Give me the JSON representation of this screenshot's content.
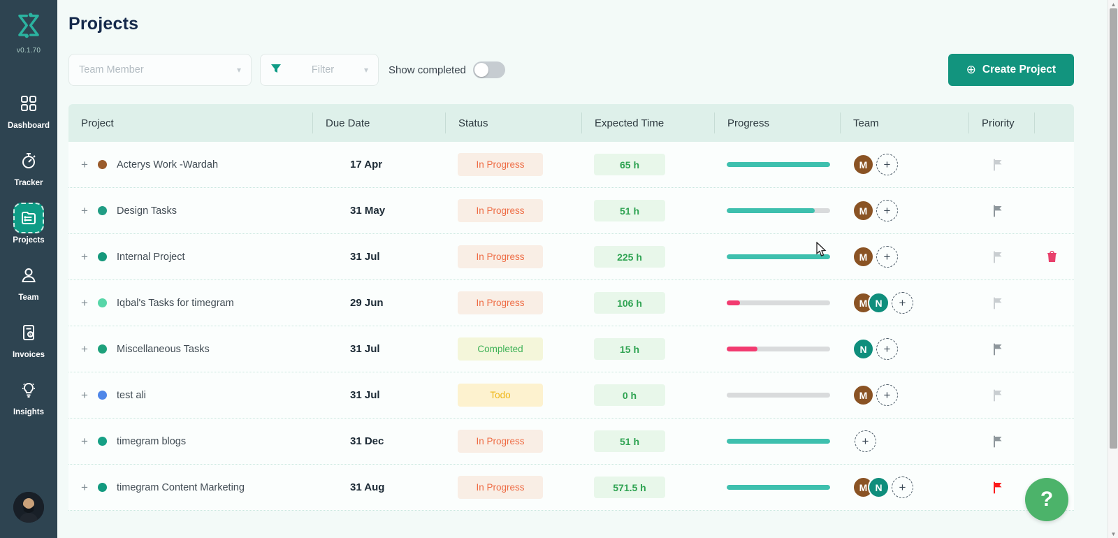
{
  "app": {
    "version": "v0.1.70"
  },
  "sidebar": {
    "items": [
      {
        "id": "dashboard",
        "label": "Dashboard",
        "icon": "grid-icon",
        "active": false
      },
      {
        "id": "tracker",
        "label": "Tracker",
        "icon": "stopwatch-icon",
        "active": false
      },
      {
        "id": "projects",
        "label": "Projects",
        "icon": "folder-list-icon",
        "active": true
      },
      {
        "id": "team",
        "label": "Team",
        "icon": "person-icon",
        "active": false
      },
      {
        "id": "invoices",
        "label": "Invoices",
        "icon": "invoice-icon",
        "active": false
      },
      {
        "id": "insights",
        "label": "Insights",
        "icon": "bulb-icon",
        "active": false
      }
    ]
  },
  "header": {
    "title": "Projects"
  },
  "toolbar": {
    "team_member_placeholder": "Team Member",
    "filter_label": "Filter",
    "show_completed_label": "Show completed",
    "show_completed_on": false,
    "create_button": "Create Project"
  },
  "colors": {
    "accent_teal": "#12947e",
    "progress_teal": "#3ec0ae",
    "progress_pink": "#f23b70",
    "flag_light": "#c9ced1",
    "flag_dark": "#8e979c",
    "flag_red": "#fb1b1b",
    "trash_red": "#e8406b"
  },
  "table": {
    "columns": [
      "Project",
      "Due Date",
      "Status",
      "Expected Time",
      "Progress",
      "Team",
      "Priority"
    ],
    "rows": [
      {
        "name": "Acterys Work -Wardah",
        "dot_color": "#9a5b2b",
        "due": "17 Apr",
        "status": "In Progress",
        "status_type": "in-progress",
        "hours": "65 h",
        "progress": 100,
        "progress_color": "teal",
        "team": [
          "M"
        ],
        "flag": "light",
        "trash": false
      },
      {
        "name": "Design Tasks",
        "dot_color": "#209d84",
        "due": "31 May",
        "status": "In Progress",
        "status_type": "in-progress",
        "hours": "51 h",
        "progress": 85,
        "progress_color": "teal",
        "team": [
          "M"
        ],
        "flag": "dark",
        "trash": false
      },
      {
        "name": "Internal Project",
        "dot_color": "#15987b",
        "due": "31 Jul",
        "status": "In Progress",
        "status_type": "in-progress",
        "hours": "225 h",
        "progress": 100,
        "progress_color": "teal",
        "team": [
          "M"
        ],
        "flag": "light",
        "trash": true
      },
      {
        "name": "Iqbal's Tasks for timegram",
        "dot_color": "#57d6a8",
        "due": "29 Jun",
        "status": "In Progress",
        "status_type": "in-progress",
        "hours": "106 h",
        "progress": 13,
        "progress_color": "pink",
        "team": [
          "M",
          "N"
        ],
        "flag": "light",
        "trash": false
      },
      {
        "name": "Miscellaneous Tasks",
        "dot_color": "#1da17b",
        "due": "31 Jul",
        "status": "Completed",
        "status_type": "completed",
        "hours": "15 h",
        "progress": 30,
        "progress_color": "pink",
        "team": [
          "N"
        ],
        "flag": "dark",
        "trash": false
      },
      {
        "name": "test ali",
        "dot_color": "#4e86e8",
        "due": "31 Jul",
        "status": "Todo",
        "status_type": "todo",
        "hours": "0 h",
        "progress": 0,
        "progress_color": "teal",
        "team": [
          "M"
        ],
        "flag": "light",
        "trash": false
      },
      {
        "name": "timegram blogs",
        "dot_color": "#16a085",
        "due": "31 Dec",
        "status": "In Progress",
        "status_type": "in-progress",
        "hours": "51 h",
        "progress": 100,
        "progress_color": "teal",
        "team": [],
        "flag": "dark",
        "trash": false
      },
      {
        "name": "timegram Content Marketing",
        "dot_color": "#129a7f",
        "due": "31 Aug",
        "status": "In Progress",
        "status_type": "in-progress",
        "hours": "571.5 h",
        "progress": 100,
        "progress_color": "teal",
        "team": [
          "M",
          "N"
        ],
        "flag": "red",
        "trash": false
      }
    ]
  },
  "help_button_label": "?"
}
